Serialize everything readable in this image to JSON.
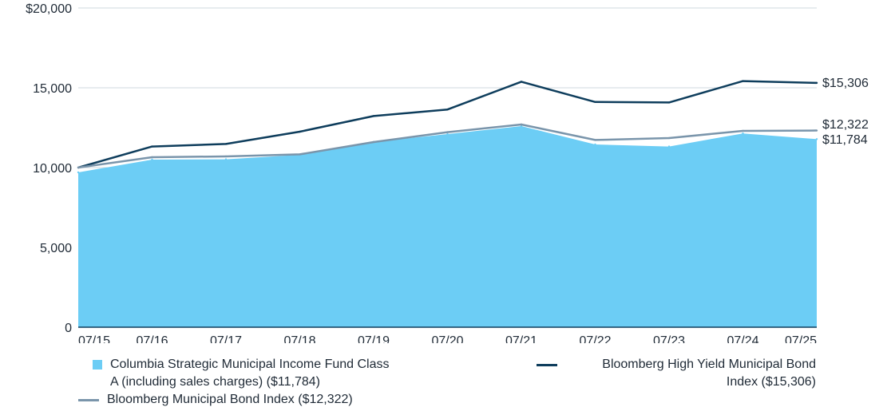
{
  "chart_data": {
    "type": "area",
    "x": [
      "07/15",
      "07/16",
      "07/17",
      "07/18",
      "07/19",
      "07/20",
      "07/21",
      "07/22",
      "07/23",
      "07/24",
      "07/25"
    ],
    "ylim": [
      0,
      20000
    ],
    "y_ticks": [
      "0",
      "5,000",
      "10,000",
      "15,000",
      "$20,000"
    ],
    "y_tick_values": [
      0,
      5000,
      10000,
      15000,
      20000
    ],
    "grid": true,
    "legend_position": "bottom",
    "series": [
      {
        "name": "Columbia Strategic Municipal Income Fund Class A (including sales charges) ($11,784)",
        "style": "area",
        "color": "#6ccdf5",
        "values": [
          9700,
          10500,
          10520,
          10800,
          11600,
          12100,
          12600,
          11450,
          11320,
          12140,
          11784
        ],
        "end_label": "$11,784"
      },
      {
        "name": "Bloomberg High Yield Municipal Bond Index ($15,306)",
        "style": "line",
        "color": "#0e3d5c",
        "values": [
          10000,
          11320,
          11480,
          12250,
          13230,
          13640,
          15380,
          14110,
          14080,
          15420,
          15306
        ],
        "end_label": "$15,306"
      },
      {
        "name": "Bloomberg Municipal Bond Index ($12,322)",
        "style": "line",
        "color": "#7a95ab",
        "values": [
          10000,
          10650,
          10700,
          10830,
          11600,
          12220,
          12700,
          11730,
          11850,
          12300,
          12322
        ],
        "end_label": "$12,322"
      }
    ]
  },
  "legend": {
    "fund_label_line1": "Columbia Strategic Municipal Income Fund Class",
    "fund_label_line2": "A (including sales charges) ($11,784)",
    "hy_label_line1": "Bloomberg High Yield Municipal Bond",
    "hy_label_line2": "Index ($15,306)",
    "muni_label": "Bloomberg Municipal Bond Index ($12,322)"
  }
}
